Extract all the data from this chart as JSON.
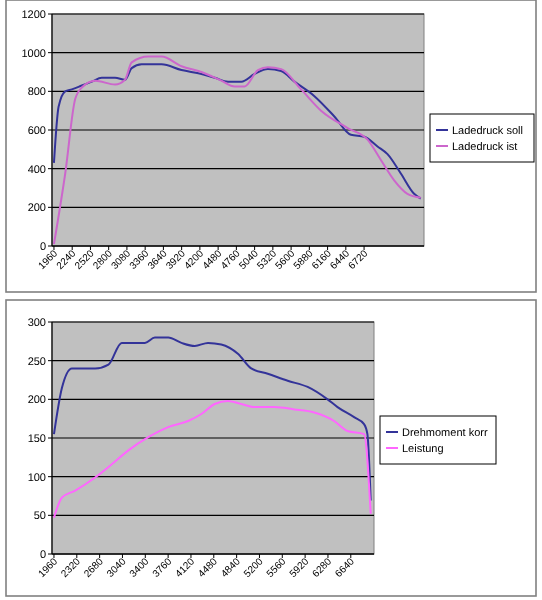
{
  "chart_data": [
    {
      "type": "line",
      "legend": "right",
      "grid": "y",
      "xlim": [
        1930,
        7640
      ],
      "ylim": [
        0,
        1200
      ],
      "yticks": [
        0,
        200,
        400,
        600,
        800,
        1000,
        1200
      ],
      "xticks": [
        1960,
        2240,
        2520,
        2800,
        3080,
        3360,
        3640,
        3920,
        4200,
        4480,
        4760,
        5040,
        5320,
        5600,
        5880,
        6160,
        6440,
        6720
      ],
      "series": [
        {
          "name": "Ladedruck soll",
          "color": "#333399",
          "x": [
            1960,
            2031,
            2133,
            2235,
            2388,
            2541,
            2694,
            2898,
            3051,
            3153,
            3306,
            3612,
            3918,
            4224,
            4428,
            4632,
            4836,
            5040,
            5244,
            5448,
            5652,
            5958,
            6264,
            6519,
            6723,
            6927,
            7080,
            7284,
            7488,
            7590
          ],
          "values": [
            430,
            720,
            800,
            810,
            830,
            850,
            870,
            870,
            860,
            920,
            940,
            940,
            910,
            890,
            870,
            850,
            850,
            890,
            915,
            905,
            850,
            775,
            670,
            575,
            565,
            515,
            475,
            375,
            270,
            245
          ]
        },
        {
          "name": "Ladedruck ist",
          "color": "#cc66cc",
          "x": [
            1960,
            2133,
            2286,
            2388,
            2592,
            2898,
            3051,
            3153,
            3408,
            3612,
            3918,
            4224,
            4530,
            4734,
            4887,
            5091,
            5244,
            5448,
            5754,
            6060,
            6468,
            6774,
            6978,
            7182,
            7386,
            7590
          ],
          "values": [
            10,
            375,
            760,
            820,
            855,
            835,
            860,
            950,
            980,
            980,
            930,
            900,
            855,
            825,
            825,
            910,
            925,
            915,
            810,
            700,
            610,
            550,
            445,
            340,
            270,
            250
          ]
        }
      ]
    },
    {
      "type": "line",
      "legend": "right",
      "grid": "y",
      "xlim": [
        1929,
        7006
      ],
      "ylim": [
        0,
        300
      ],
      "yticks": [
        0,
        50,
        100,
        150,
        200,
        250,
        300
      ],
      "xticks": [
        1960,
        2320,
        2680,
        3040,
        3400,
        3760,
        4120,
        4480,
        4840,
        5200,
        5560,
        5920,
        6280,
        6640
      ],
      "series": [
        {
          "name": "Drehmoment korr",
          "color": "#333399",
          "x": [
            1960,
            2086,
            2243,
            2609,
            2819,
            3028,
            3394,
            3551,
            3761,
            3970,
            4180,
            4389,
            4598,
            4860,
            5070,
            5331,
            5645,
            5960,
            6274,
            6431,
            6692,
            6849,
            6902,
            6954
          ],
          "values": [
            155,
            215,
            240,
            240,
            245,
            273,
            273,
            280,
            280,
            273,
            269,
            273,
            271,
            259,
            240,
            233,
            224,
            216,
            200,
            190,
            177,
            168,
            155,
            69
          ]
        },
        {
          "name": "Leistung",
          "color": "#ff66ff",
          "x": [
            1960,
            2086,
            2295,
            2609,
            2871,
            3133,
            3447,
            3761,
            4075,
            4284,
            4494,
            4703,
            4913,
            5122,
            5436,
            5750,
            6064,
            6378,
            6588,
            6849,
            6954
          ],
          "values": [
            47,
            73,
            82,
            99,
            116,
            134,
            151,
            164,
            172,
            181,
            194,
            198,
            194,
            190,
            190,
            187,
            183,
            172,
            159,
            155,
            52
          ]
        }
      ]
    }
  ]
}
